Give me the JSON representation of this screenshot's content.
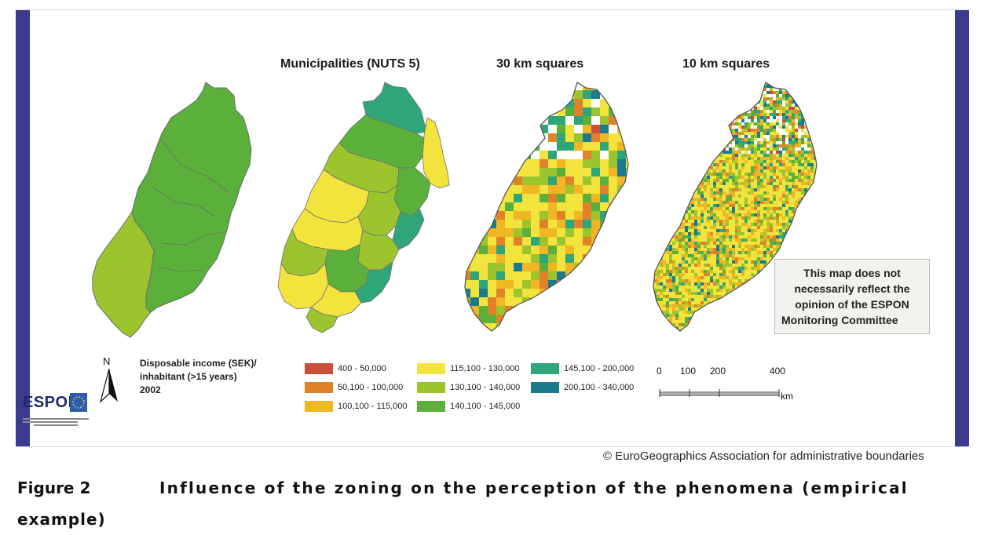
{
  "titles": {
    "municipalities": "Municipalities (NUTS 5)",
    "km30": "30 km squares",
    "km10": "10 km squares"
  },
  "disclaimer": {
    "line1": "This map does not",
    "line2": "necessarily reflect the",
    "line3": "opinion of the ESPON",
    "line4": "Monitoring Committee"
  },
  "legend": {
    "title_line1": "Disposable income (SEK)/",
    "title_line2": "inhabitant  (>15 years)",
    "title_line3": "2002",
    "classes": [
      {
        "label": "400 - 50,000",
        "color": "#c8503a"
      },
      {
        "label": "50,100 - 100,000",
        "color": "#e0822a"
      },
      {
        "label": "100,100 - 115,000",
        "color": "#f0b624"
      },
      {
        "label": "115,100 - 130,000",
        "color": "#f2e43c"
      },
      {
        "label": "130,100 - 140,000",
        "color": "#9cc42c"
      },
      {
        "label": "140,100 - 145,000",
        "color": "#5ab03a"
      },
      {
        "label": "145,100 - 200,000",
        "color": "#2fa57a"
      },
      {
        "label": "200,100 - 340,000",
        "color": "#1b7a8e"
      }
    ]
  },
  "north_label": "N",
  "scale": {
    "ticks": [
      "0",
      "100",
      "200",
      "400"
    ],
    "unit": "km"
  },
  "logo": {
    "text": "ESPON"
  },
  "copyright": "© EuroGeographics Association for administrative boundaries",
  "figure": {
    "number": "Figure 2",
    "caption_line1": "Influence of the zoning on the perception of the phenomena (empirical",
    "caption_line2": "example)"
  },
  "colors": {
    "frame_bar": "#3b3a8c",
    "region_green": "#5ab03a",
    "region_lightgreen": "#9cc42c"
  }
}
